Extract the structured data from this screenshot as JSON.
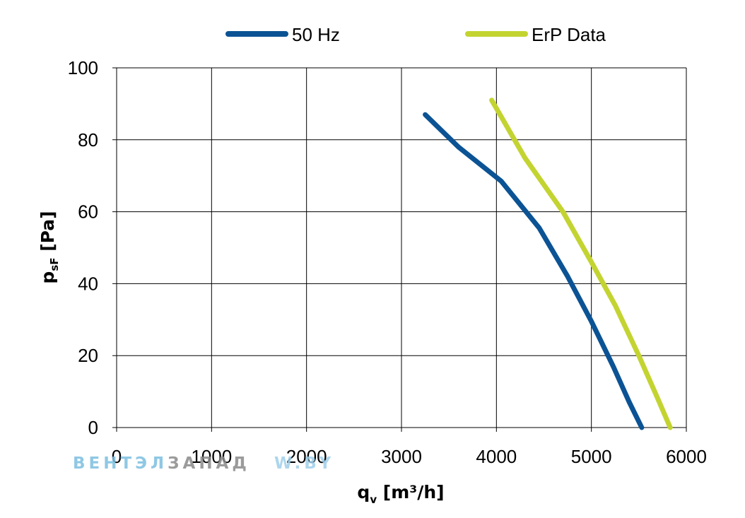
{
  "chart_data": {
    "type": "line",
    "xlabel": {
      "main": "q",
      "sub": "v",
      "unit": " [m³/h]"
    },
    "ylabel": {
      "main": "p",
      "sub": "sF",
      "unit": " [Pa]"
    },
    "xlim": [
      0,
      6000
    ],
    "ylim": [
      0,
      100
    ],
    "xticks": [
      0,
      1000,
      2000,
      3000,
      4000,
      5000,
      6000
    ],
    "yticks": [
      0,
      20,
      40,
      60,
      80,
      100
    ],
    "grid": true,
    "legend_position": "top",
    "series": [
      {
        "name": "50 Hz",
        "color": "#0b5394",
        "x": [
          3250,
          3600,
          4050,
          4450,
          4750,
          5000,
          5230,
          5400,
          5530
        ],
        "y": [
          87,
          78,
          68.5,
          55.5,
          42,
          29.5,
          17,
          7,
          0
        ]
      },
      {
        "name": "ErP Data",
        "color": "#c3d431",
        "x": [
          3950,
          4300,
          4700,
          5000,
          5250,
          5500,
          5700,
          5830
        ],
        "y": [
          91,
          75,
          60,
          46,
          34,
          20,
          8,
          0
        ]
      }
    ]
  },
  "watermark": {
    "part1": "ВЕНТЭЛ",
    "part2": "ЗАПАД",
    "part3": "W.BY",
    "color1": "#7cbfe0",
    "color2": "#8a8a8a",
    "color3": "#9fd0ea"
  }
}
